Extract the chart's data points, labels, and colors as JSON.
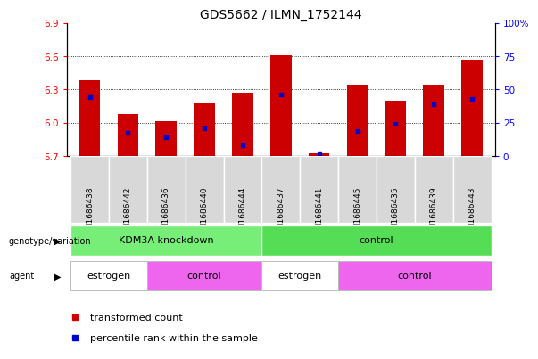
{
  "title": "GDS5662 / ILMN_1752144",
  "samples": [
    "GSM1686438",
    "GSM1686442",
    "GSM1686436",
    "GSM1686440",
    "GSM1686444",
    "GSM1686437",
    "GSM1686441",
    "GSM1686445",
    "GSM1686435",
    "GSM1686439",
    "GSM1686443"
  ],
  "transformed_count": [
    6.38,
    6.08,
    6.01,
    6.17,
    6.27,
    6.61,
    5.72,
    6.34,
    6.2,
    6.34,
    6.57
  ],
  "percentile_rank": [
    44,
    17,
    14,
    21,
    8,
    46,
    1,
    19,
    24,
    39,
    43
  ],
  "ymin": 5.7,
  "ymax": 6.9,
  "yticks": [
    5.7,
    6.0,
    6.3,
    6.6,
    6.9
  ],
  "right_yticks": [
    0,
    25,
    50,
    75,
    100
  ],
  "bar_color": "#cc0000",
  "percentile_color": "#0000cc",
  "bar_width": 0.55,
  "geno_groups": [
    {
      "label": "KDM3A knockdown",
      "start": 0,
      "end": 4,
      "color": "#77ee77"
    },
    {
      "label": "control",
      "start": 5,
      "end": 10,
      "color": "#55dd55"
    }
  ],
  "agent_groups": [
    {
      "label": "estrogen",
      "start": 0,
      "end": 1,
      "color": "#ffffff"
    },
    {
      "label": "control",
      "start": 2,
      "end": 4,
      "color": "#ee66ee"
    },
    {
      "label": "estrogen",
      "start": 5,
      "end": 6,
      "color": "#ffffff"
    },
    {
      "label": "control",
      "start": 7,
      "end": 10,
      "color": "#ee66ee"
    }
  ],
  "legend": [
    {
      "label": "transformed count",
      "color": "#cc0000"
    },
    {
      "label": "percentile rank within the sample",
      "color": "#0000cc"
    }
  ],
  "tick_fontsize": 7.5,
  "title_fontsize": 10,
  "sample_fontsize": 6.5,
  "group_fontsize": 8,
  "legend_fontsize": 8
}
